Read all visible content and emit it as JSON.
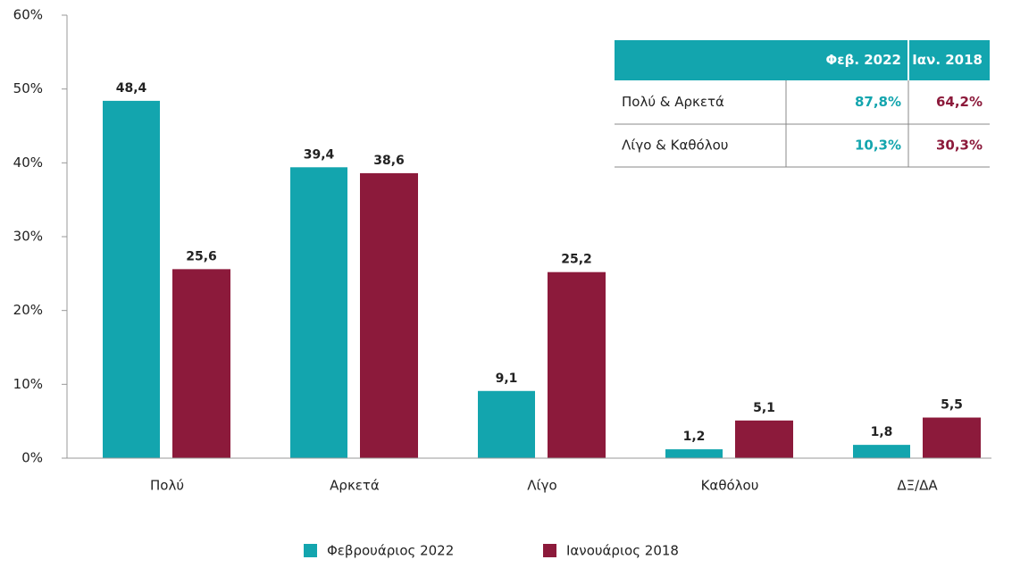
{
  "chart_data": {
    "type": "bar",
    "categories": [
      "Πολύ",
      "Αρκετά",
      "Λίγο",
      "Καθόλου",
      "ΔΞ/ΔΑ"
    ],
    "series": [
      {
        "name": "Φεβρουάριος 2022",
        "color": "#13a5ae",
        "values": [
          48.4,
          39.4,
          9.1,
          1.2,
          1.8
        ],
        "value_labels": [
          "48,4",
          "39,4",
          "9,1",
          "1,2",
          "1,8"
        ]
      },
      {
        "name": "Ιανουάριος 2018",
        "color": "#8c1a3b",
        "values": [
          25.6,
          38.6,
          25.2,
          5.1,
          5.5
        ],
        "value_labels": [
          "25,6",
          "38,6",
          "25,2",
          "5,1",
          "5,5"
        ]
      }
    ],
    "ylim": [
      0,
      60
    ],
    "yticks": [
      {
        "value": 0,
        "label": "0%"
      },
      {
        "value": 10,
        "label": "10%"
      },
      {
        "value": 20,
        "label": "20%"
      },
      {
        "value": 30,
        "label": "30%"
      },
      {
        "value": 40,
        "label": "40%"
      },
      {
        "value": 50,
        "label": "50%"
      },
      {
        "value": 60,
        "label": "60%"
      }
    ],
    "legend": "bottom",
    "table": {
      "header": [
        "Φεβ. 2022",
        "Ιαν. 2018"
      ],
      "rows": [
        {
          "label": "Πολύ & Αρκετά",
          "values": [
            "87,8%",
            "64,2%"
          ]
        },
        {
          "label": "Λίγο & Καθόλου",
          "values": [
            "10,3%",
            "30,3%"
          ]
        }
      ]
    }
  }
}
